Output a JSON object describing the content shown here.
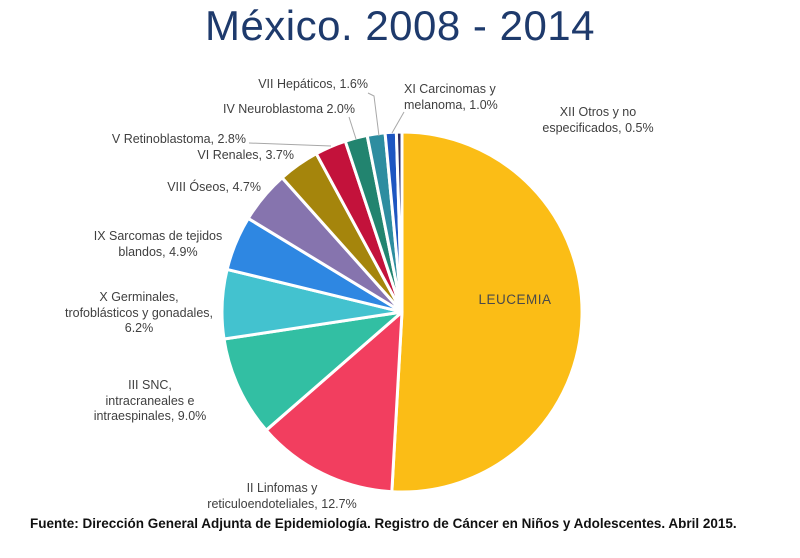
{
  "page": {
    "title": "México. 2008 - 2014",
    "footer": "Fuente: Dirección General Adjunta de Epidemiología. Registro de Cáncer en Niños y Adolescentes. Abril 2015."
  },
  "chart_data": {
    "type": "pie",
    "title": "México. 2008 - 2014",
    "direction": "clockwise",
    "start_angle_deg": 0,
    "legend_position": "outside-callout-labels",
    "slices": [
      {
        "name": "I Leucemia",
        "label": "LEUCEMIA",
        "value": 50.9,
        "color": "#FBBD16"
      },
      {
        "name": "II Linfomas y reticuloendoteliales",
        "label": "II Linfomas y\nreticuloendoteliales, 12.7%",
        "value": 12.7,
        "color": "#F23E5F"
      },
      {
        "name": "III SNC, intracraneales e intraespinales",
        "label": "III SNC,\nintracraneales e\nintraespinales, 9.0%",
        "value": 9.0,
        "color": "#32BFA3"
      },
      {
        "name": "X Germinales, trofoblásticos y gonadales",
        "label": "X Germinales,\ntrofoblásticos y gonadales,\n6.2%",
        "value": 6.2,
        "color": "#43C2CF"
      },
      {
        "name": "IX Sarcomas de tejidos blandos",
        "label": "IX Sarcomas de tejidos\nblandos, 4.9%",
        "value": 4.9,
        "color": "#2E87E2"
      },
      {
        "name": "VIII Óseos",
        "label": "VIII Óseos, 4.7%",
        "value": 4.7,
        "color": "#8674AE"
      },
      {
        "name": "VI Renales",
        "label": "VI Renales, 3.7%",
        "value": 3.7,
        "color": "#A5850C"
      },
      {
        "name": "V Retinoblastoma",
        "label": "V Retinoblastoma, 2.8%",
        "value": 2.8,
        "color": "#C3123B"
      },
      {
        "name": "IV Neuroblastoma",
        "label": "IV Neuroblastoma 2.0%",
        "value": 2.0,
        "color": "#22846F"
      },
      {
        "name": "VII Hepáticos",
        "label": "VII Hepáticos, 1.6%",
        "value": 1.6,
        "color": "#2D8DA0"
      },
      {
        "name": "XI Carcinomas y melanoma",
        "label": "XI Carcinomas y\nmelanoma, 1.0%",
        "value": 1.0,
        "color": "#1E56C1"
      },
      {
        "name": "XII Otros y no especificados",
        "label": "XII Otros y no\nespecificados, 0.5%",
        "value": 0.5,
        "color": "#2F2C62"
      }
    ]
  }
}
